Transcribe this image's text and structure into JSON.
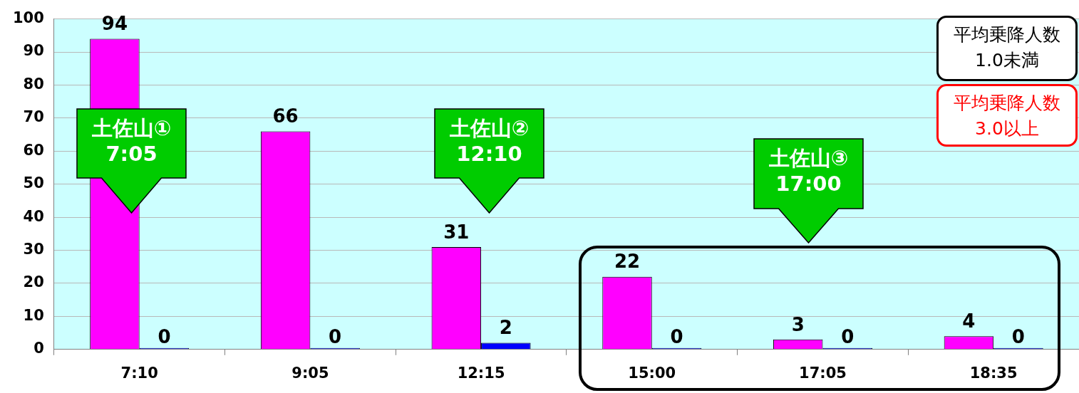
{
  "chart_data": {
    "type": "bar",
    "categories": [
      "7:10",
      "9:05",
      "12:15",
      "15:00",
      "17:05",
      "18:35"
    ],
    "series": [
      {
        "color": "#ff00ff",
        "values": [
          94,
          66,
          31,
          22,
          3,
          4
        ]
      },
      {
        "color": "#0000ff",
        "values": [
          0,
          0,
          2,
          0,
          0,
          0
        ]
      }
    ],
    "ylim": [
      0,
      100
    ],
    "yticks": [
      0,
      10,
      20,
      30,
      40,
      50,
      60,
      70,
      80,
      90,
      100
    ],
    "grid": "y",
    "legend": false,
    "data_labels": true,
    "annotations": [
      "土佐山①\n7:05",
      "土佐山②\n12:10",
      "土佐山③\n17:00",
      "平均乗降人数\n1.0未満",
      "平均乗降人数\n3.0以上"
    ]
  }
}
